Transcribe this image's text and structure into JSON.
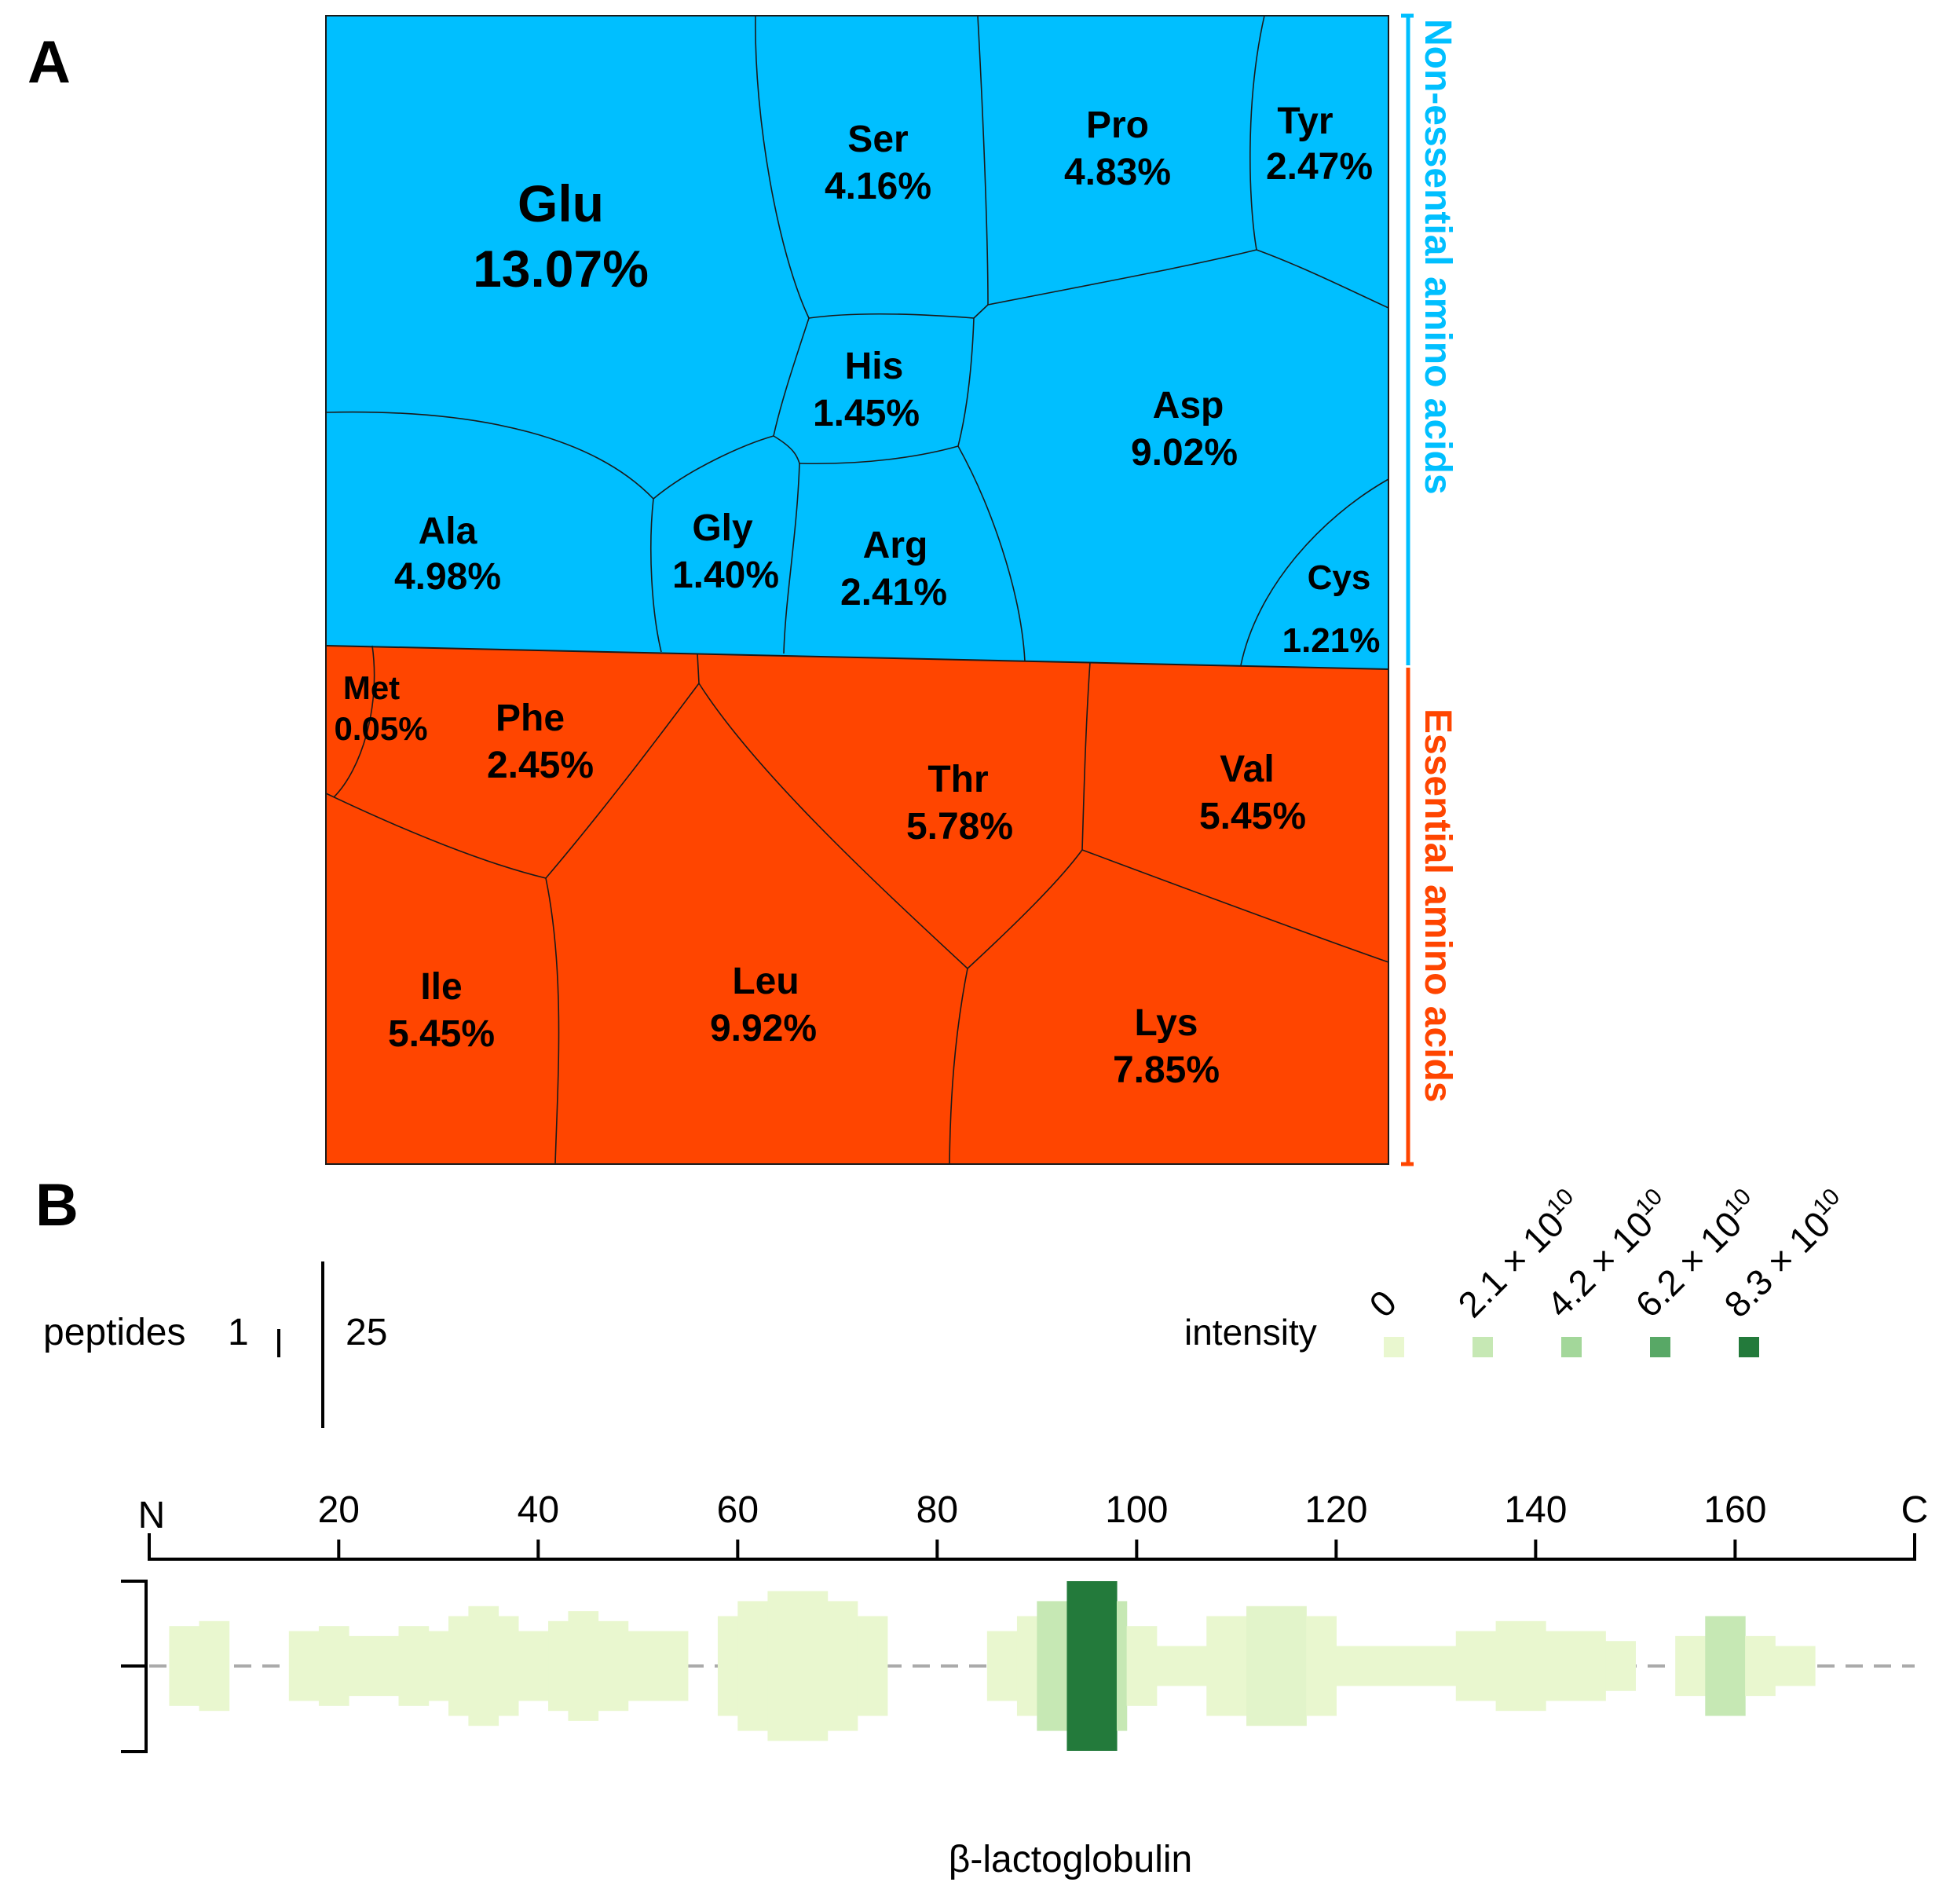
{
  "panels": {
    "a_label": "A",
    "b_label": "B"
  },
  "colors": {
    "non_essential": "#00bfff",
    "essential": "#ff4500",
    "outline": "#1a1a1a",
    "text": "#000000",
    "dash": "#aaaaaa"
  },
  "chart_data": [
    {
      "type": "voronoi_treemap",
      "title": "",
      "groups": [
        {
          "name": "Non-essential amino acids",
          "color": "#00bfff"
        },
        {
          "name": "Essential amino acids",
          "color": "#ff4500"
        }
      ],
      "cells": [
        {
          "group": 0,
          "name": "Glu",
          "label": "13.07%",
          "value": 13.07
        },
        {
          "group": 0,
          "name": "Ser",
          "label": "4.16%",
          "value": 4.16
        },
        {
          "group": 0,
          "name": "Pro",
          "label": "4.83%",
          "value": 4.83
        },
        {
          "group": 0,
          "name": "Tyr",
          "label": "2.47%",
          "value": 2.47
        },
        {
          "group": 0,
          "name": "His",
          "label": "1.45%",
          "value": 1.45
        },
        {
          "group": 0,
          "name": "Asp",
          "label": "9.02%",
          "value": 9.02
        },
        {
          "group": 0,
          "name": "Ala",
          "label": "4.98%",
          "value": 4.98
        },
        {
          "group": 0,
          "name": "Gly",
          "label": "1.40%",
          "value": 1.4
        },
        {
          "group": 0,
          "name": "Arg",
          "label": "2.41%",
          "value": 2.41
        },
        {
          "group": 0,
          "name": "Cys",
          "label": "1.21%",
          "value": 1.21
        },
        {
          "group": 1,
          "name": "Met",
          "label": "0.05%",
          "value": 0.05
        },
        {
          "group": 1,
          "name": "Phe",
          "label": "2.45%",
          "value": 2.45
        },
        {
          "group": 1,
          "name": "Thr",
          "label": "5.78%",
          "value": 5.78
        },
        {
          "group": 1,
          "name": "Val",
          "label": "5.45%",
          "value": 5.45
        },
        {
          "group": 1,
          "name": "Ile",
          "label": "5.45%",
          "value": 5.45
        },
        {
          "group": 1,
          "name": "Leu",
          "label": "9.92%",
          "value": 9.92
        },
        {
          "group": 1,
          "name": "Lys",
          "label": "7.85%",
          "value": 7.85
        }
      ]
    },
    {
      "type": "peptide_coverage",
      "protein": "β-lactoglobulin",
      "axis": {
        "start_label": "N",
        "end_label": "C",
        "range": [
          1,
          178
        ],
        "ticks": [
          20,
          40,
          60,
          80,
          100,
          120,
          140,
          160
        ],
        "tick_labels": [
          "20",
          "40",
          "60",
          "80",
          "100",
          "120",
          "140",
          "160"
        ]
      },
      "peptides_legend": {
        "label": "peptides",
        "min": "1",
        "max": "25",
        "min_value": 1,
        "max_value": 25
      },
      "intensity_legend": {
        "label": "intensity",
        "levels": [
          {
            "base": "0",
            "exp": "",
            "value": 0,
            "color": "#e9f7cf"
          },
          {
            "base": "2.1 × 10",
            "exp": "10",
            "value": 21000000000,
            "color": "#c6e8b4"
          },
          {
            "base": "4.2 × 10",
            "exp": "10",
            "value": 42000000000,
            "color": "#a3d79a"
          },
          {
            "base": "6.2 × 10",
            "exp": "10",
            "value": 62000000000,
            "color": "#58a866"
          },
          {
            "base": "8.3 × 10",
            "exp": "10",
            "value": 83000000000,
            "color": "#237a3b"
          }
        ]
      },
      "coverage_columns": [
        {
          "start": 3,
          "end": 6,
          "count": 8,
          "intensity": 0
        },
        {
          "start": 6,
          "end": 9,
          "count": 9,
          "intensity": 0
        },
        {
          "start": 15,
          "end": 18,
          "count": 7,
          "intensity": 0
        },
        {
          "start": 18,
          "end": 21,
          "count": 8,
          "intensity": 0
        },
        {
          "start": 21,
          "end": 26,
          "count": 6,
          "intensity": 0
        },
        {
          "start": 26,
          "end": 29,
          "count": 8,
          "intensity": 0
        },
        {
          "start": 29,
          "end": 31,
          "count": 7,
          "intensity": 0
        },
        {
          "start": 31,
          "end": 33,
          "count": 10,
          "intensity": 0
        },
        {
          "start": 33,
          "end": 36,
          "count": 12,
          "intensity": 0
        },
        {
          "start": 36,
          "end": 38,
          "count": 10,
          "intensity": 0
        },
        {
          "start": 38,
          "end": 41,
          "count": 7,
          "intensity": 0
        },
        {
          "start": 41,
          "end": 43,
          "count": 9,
          "intensity": 0
        },
        {
          "start": 43,
          "end": 46,
          "count": 11,
          "intensity": 0
        },
        {
          "start": 46,
          "end": 49,
          "count": 9,
          "intensity": 0
        },
        {
          "start": 49,
          "end": 55,
          "count": 7,
          "intensity": 0
        },
        {
          "start": 58,
          "end": 60,
          "count": 10,
          "intensity": 0
        },
        {
          "start": 60,
          "end": 63,
          "count": 13,
          "intensity": 0
        },
        {
          "start": 63,
          "end": 69,
          "count": 15,
          "intensity": 0
        },
        {
          "start": 69,
          "end": 72,
          "count": 13,
          "intensity": 0
        },
        {
          "start": 72,
          "end": 75,
          "count": 10,
          "intensity": 0
        },
        {
          "start": 85,
          "end": 88,
          "count": 7,
          "intensity": 0
        },
        {
          "start": 88,
          "end": 90,
          "count": 10,
          "intensity": 0
        },
        {
          "start": 90,
          "end": 93,
          "count": 13,
          "intensity": 0.25
        },
        {
          "start": 93,
          "end": 98,
          "count": 17,
          "intensity": 1
        },
        {
          "start": 98,
          "end": 99,
          "count": 13,
          "intensity": 0.25
        },
        {
          "start": 99,
          "end": 102,
          "count": 8,
          "intensity": 0
        },
        {
          "start": 102,
          "end": 107,
          "count": 4,
          "intensity": 0
        },
        {
          "start": 107,
          "end": 111,
          "count": 10,
          "intensity": 0
        },
        {
          "start": 111,
          "end": 117,
          "count": 12,
          "intensity": 0.05
        },
        {
          "start": 117,
          "end": 120,
          "count": 10,
          "intensity": 0
        },
        {
          "start": 120,
          "end": 132,
          "count": 4,
          "intensity": 0
        },
        {
          "start": 132,
          "end": 136,
          "count": 7,
          "intensity": 0
        },
        {
          "start": 136,
          "end": 141,
          "count": 9,
          "intensity": 0
        },
        {
          "start": 141,
          "end": 147,
          "count": 7,
          "intensity": 0
        },
        {
          "start": 147,
          "end": 150,
          "count": 5,
          "intensity": 0
        },
        {
          "start": 154,
          "end": 157,
          "count": 6,
          "intensity": 0
        },
        {
          "start": 157,
          "end": 161,
          "count": 10,
          "intensity": 0.25
        },
        {
          "start": 161,
          "end": 164,
          "count": 6,
          "intensity": 0
        },
        {
          "start": 164,
          "end": 168,
          "count": 4,
          "intensity": 0
        }
      ]
    }
  ]
}
